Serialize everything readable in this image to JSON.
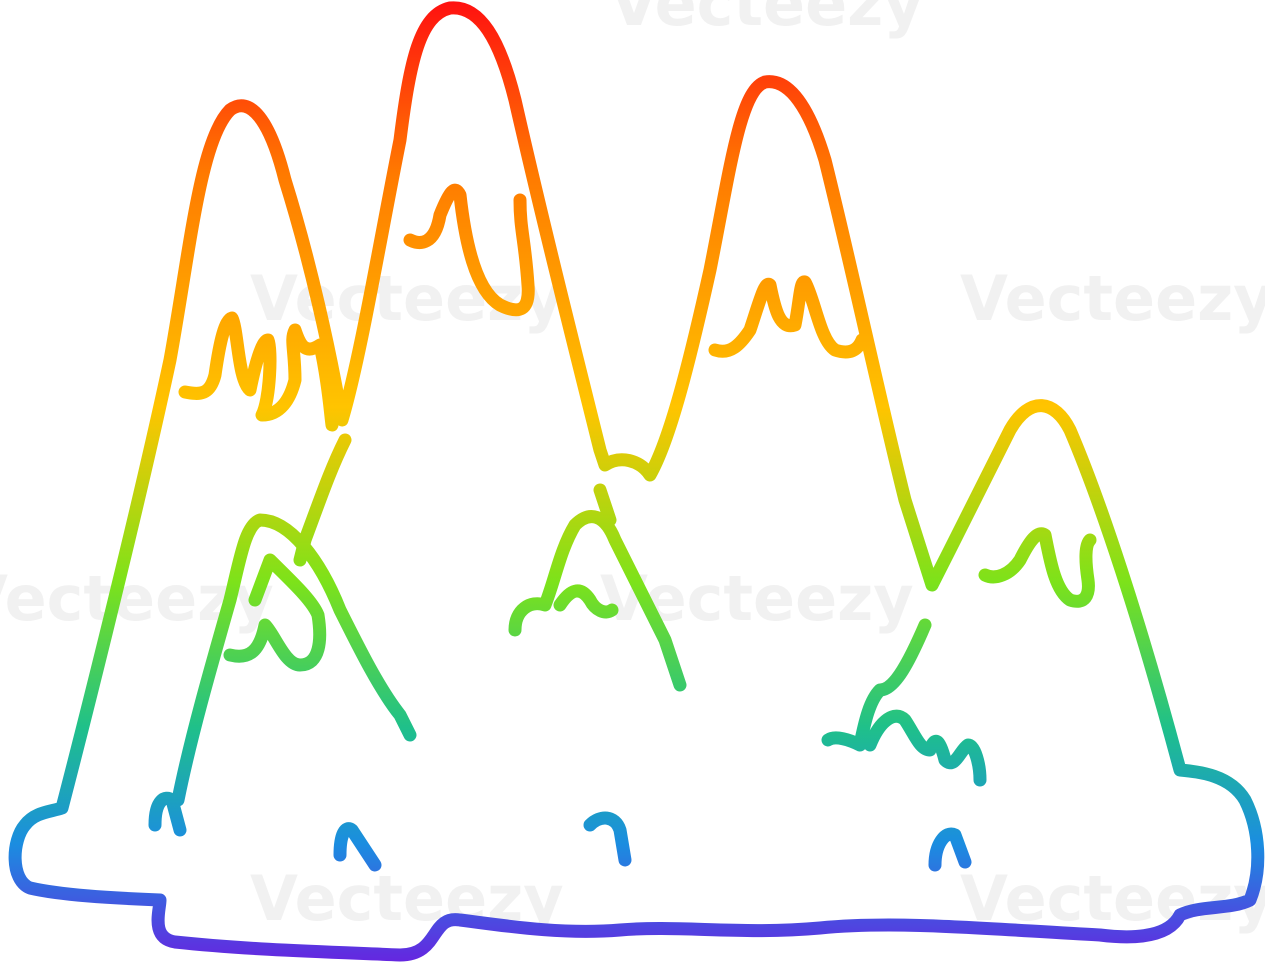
{
  "watermark": "Vecteezy"
}
